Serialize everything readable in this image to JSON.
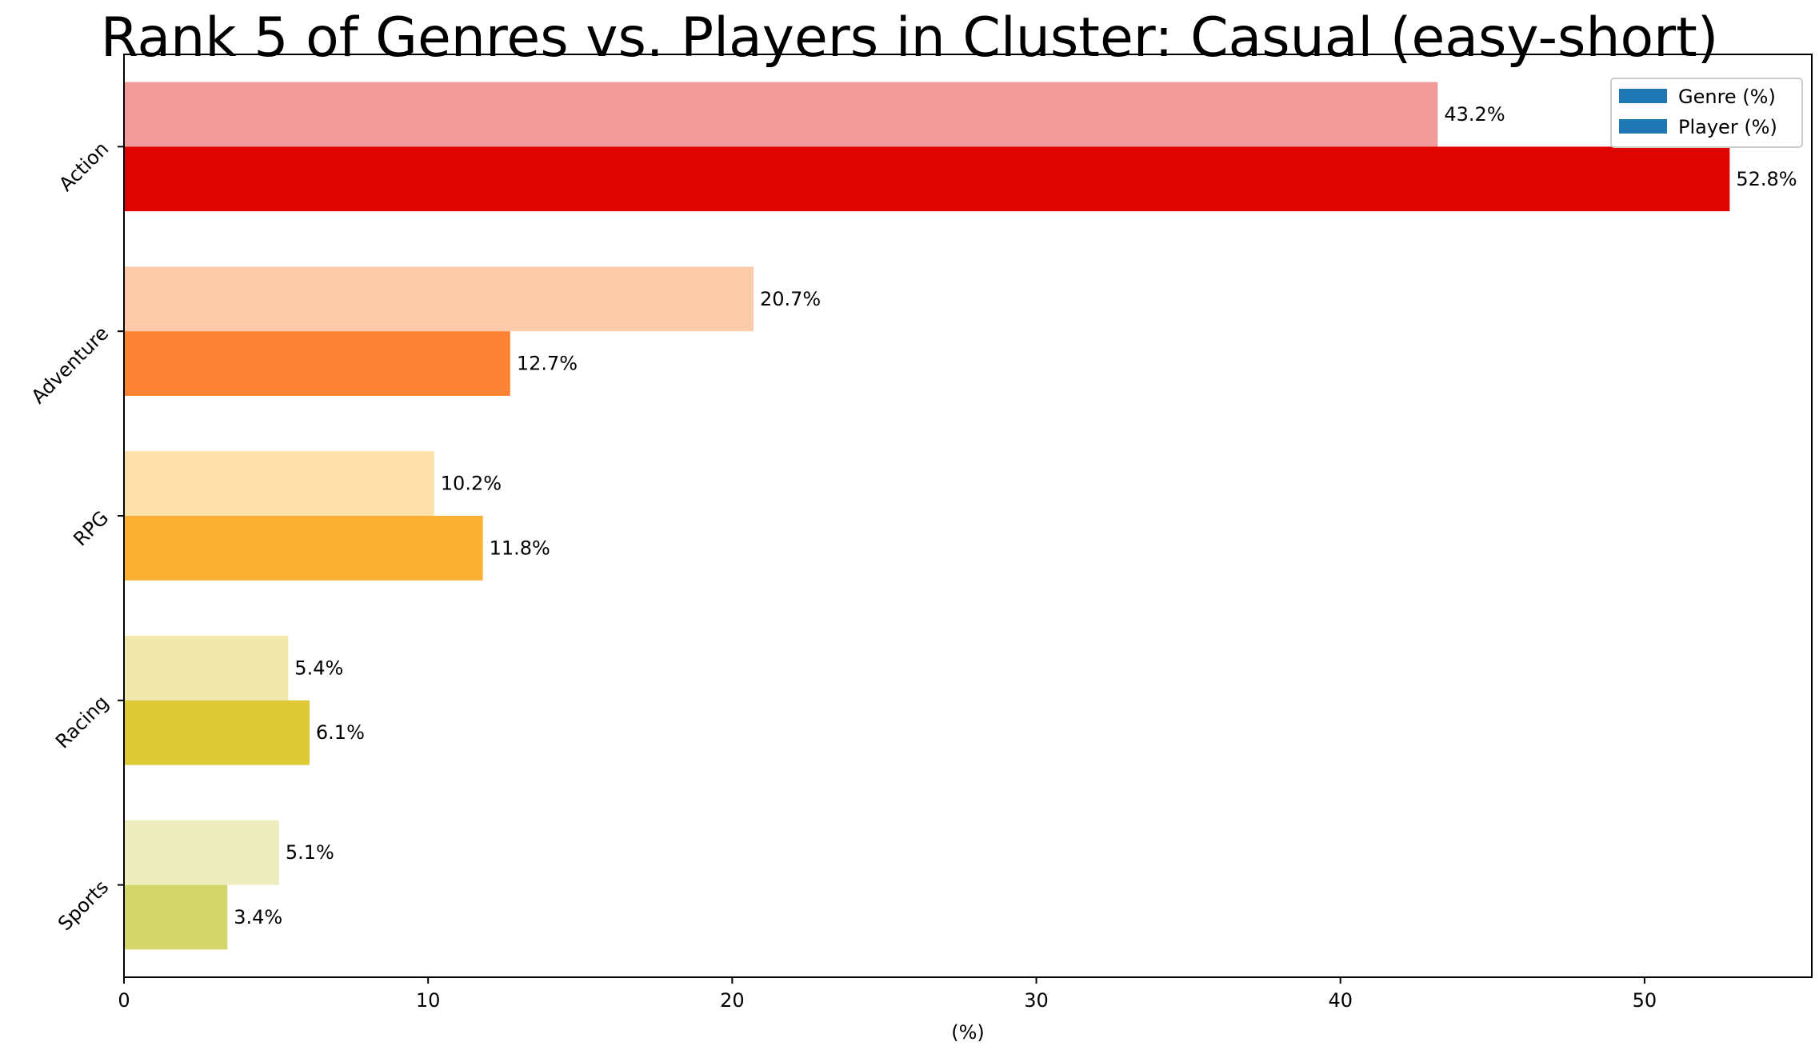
{
  "chart_data": {
    "type": "bar",
    "orientation": "horizontal",
    "title": "Rank 5 of Genres vs. Players in Cluster: Casual (easy-short)",
    "xlabel": "(%)",
    "ylabel": "",
    "xlim": [
      0,
      55.5
    ],
    "xticks": [
      0,
      10,
      20,
      30,
      40,
      50
    ],
    "grid": false,
    "legend_position": "top-right",
    "categories": [
      "Action",
      "Adventure",
      "RPG",
      "Racing",
      "Sports"
    ],
    "series": [
      {
        "name": "Genre (%)",
        "legend_color": "#1f77b4",
        "values": [
          43.2,
          20.7,
          10.2,
          5.4,
          5.1
        ],
        "labels": [
          "43.2%",
          "20.7%",
          "10.2%",
          "5.4%",
          "5.1%"
        ],
        "colors": [
          "#f09a9a",
          "#fccbaa",
          "#fde0aa",
          "#f1e8ae",
          "#ededc0"
        ]
      },
      {
        "name": "Player (%)",
        "legend_color": "#1f77b4",
        "values": [
          52.8,
          12.7,
          11.8,
          6.1,
          3.4
        ],
        "labels": [
          "52.8%",
          "12.7%",
          "11.8%",
          "6.1%",
          "3.4%"
        ],
        "colors": [
          "#de0400",
          "#fc8335",
          "#fab033",
          "#dcc935",
          "#d3d66b"
        ]
      }
    ]
  }
}
